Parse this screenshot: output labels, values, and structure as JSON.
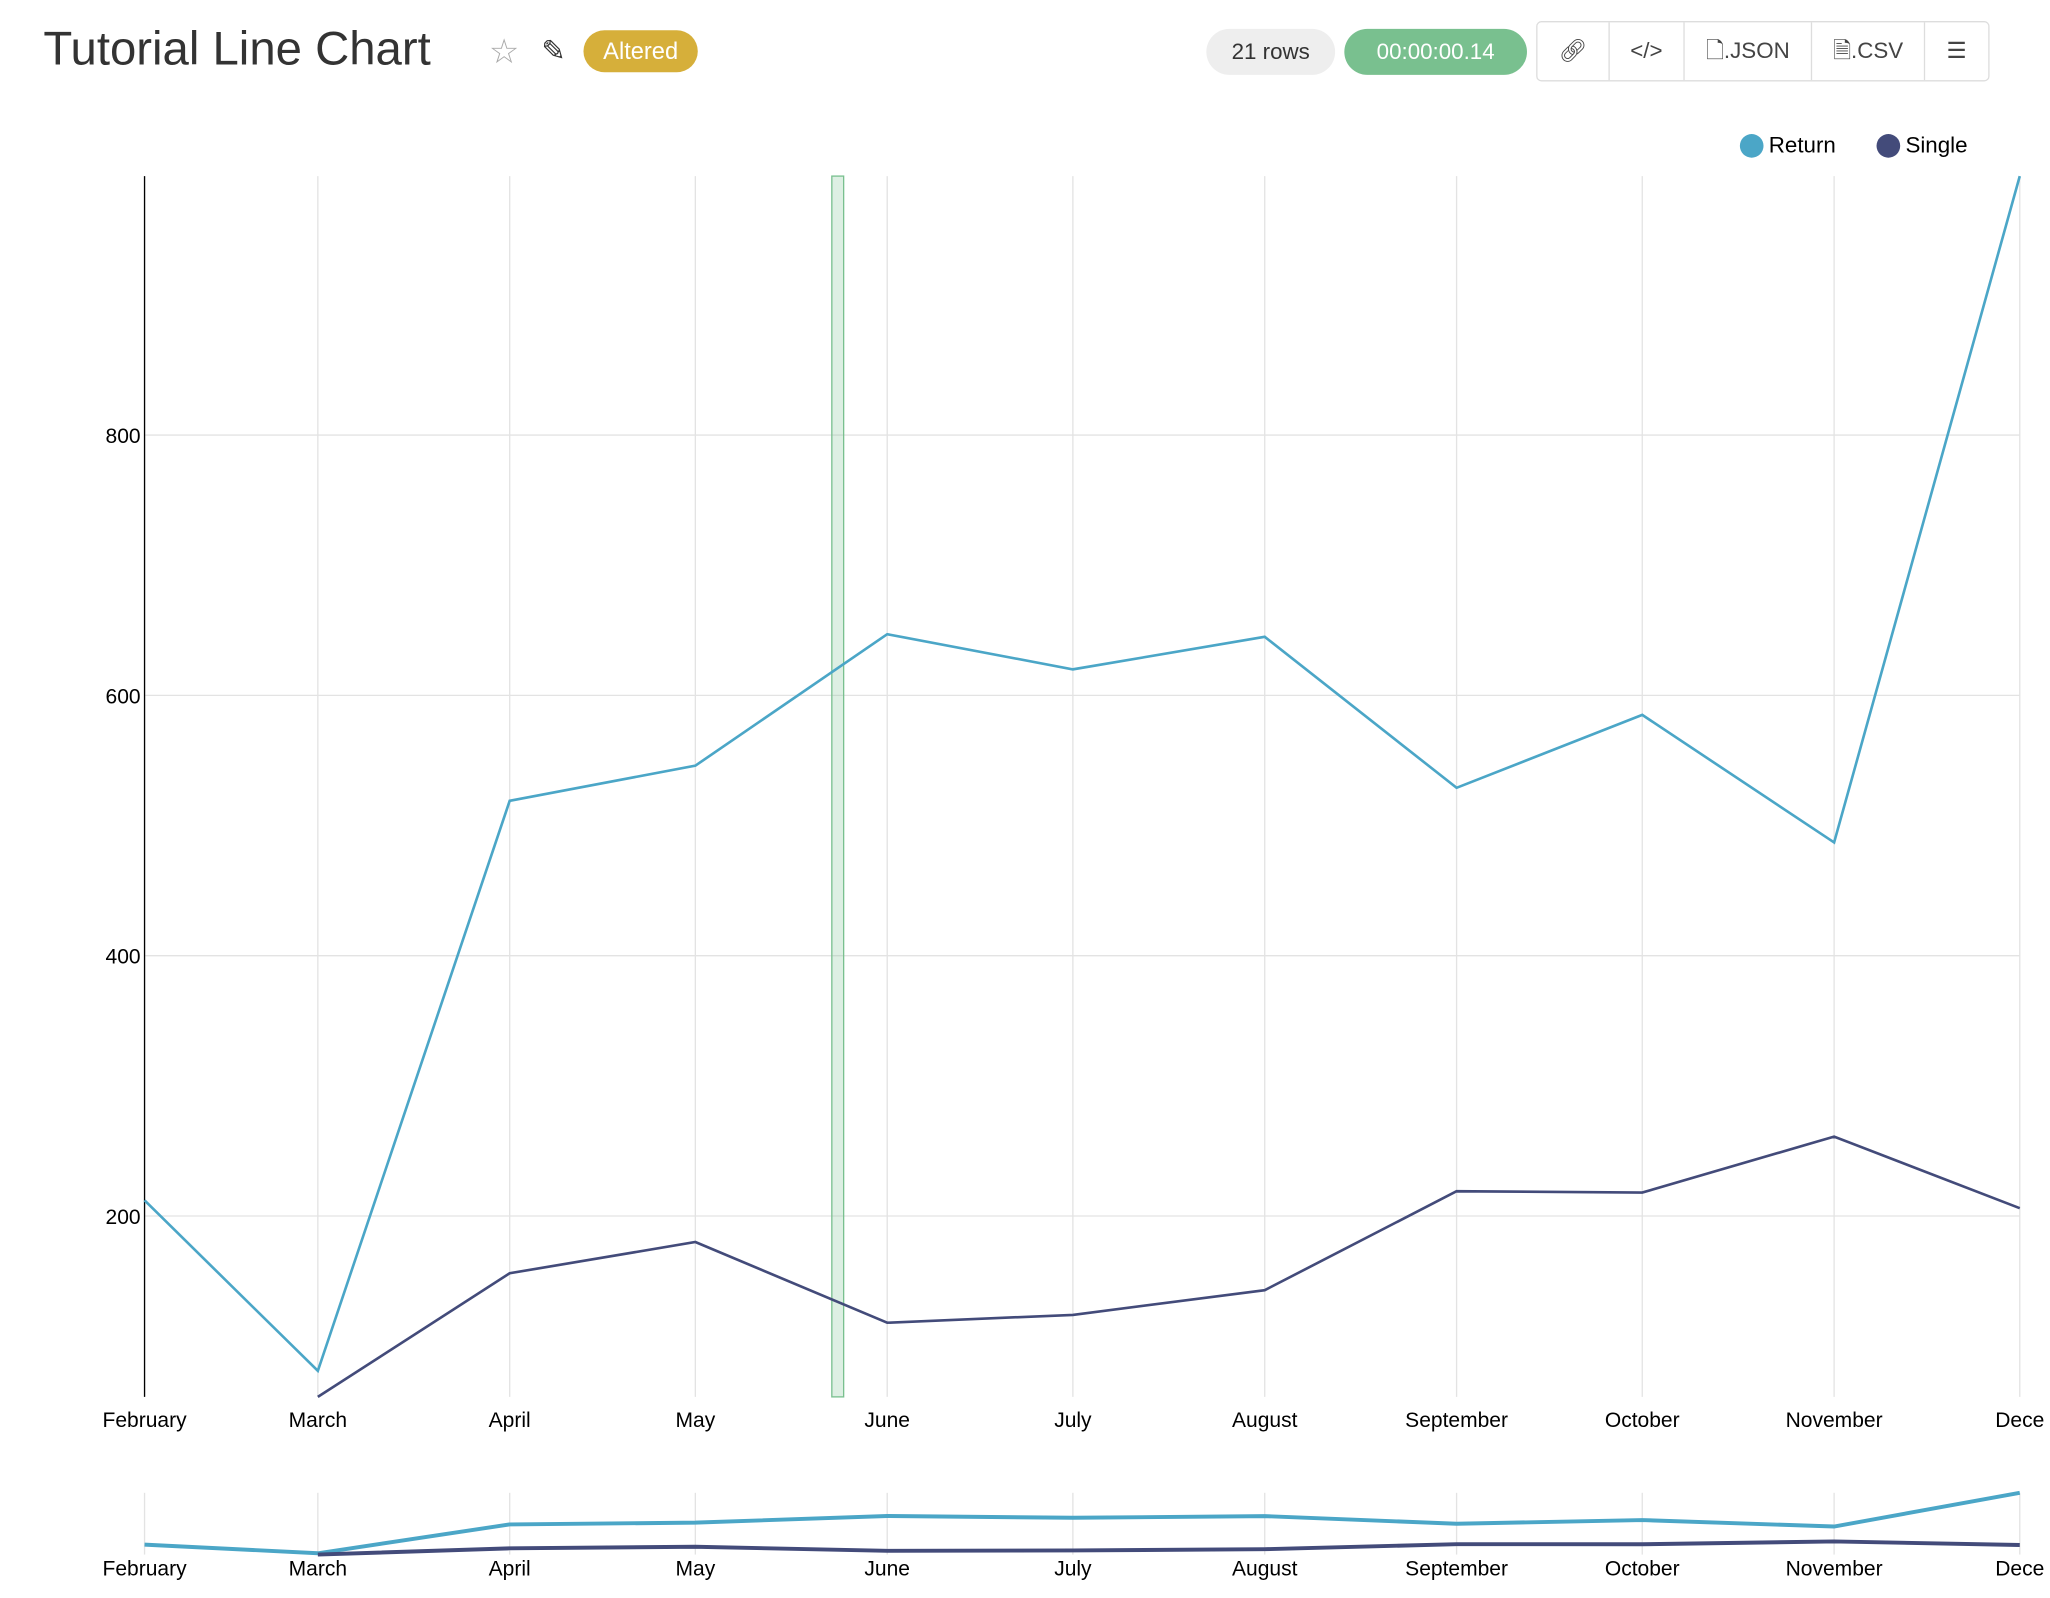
{
  "header": {
    "title": "Tutorial Line Chart",
    "badge": "Altered",
    "rows": "21 rows",
    "timer": "00:00:00.14",
    "buttons": {
      "json": ".JSON",
      "csv": ".CSV"
    },
    "icons": [
      "star-icon",
      "edit-icon",
      "link-icon",
      "code-icon",
      "json-file-icon",
      "csv-file-icon",
      "menu-icon"
    ]
  },
  "chart_data": {
    "type": "line",
    "x": [
      "February",
      "March",
      "April",
      "May",
      "June",
      "July",
      "August",
      "September",
      "October",
      "November",
      "December"
    ],
    "x_tick_labels": [
      "February",
      "March",
      "April",
      "May",
      "June",
      "July",
      "August",
      "September",
      "October",
      "November",
      "Dece"
    ],
    "y_ticks": [
      "200",
      "400",
      "600",
      "800"
    ],
    "ylim": [
      61,
      999
    ],
    "grid": true,
    "legend": "top-right",
    "series": [
      {
        "name": "Return",
        "color": "#4ba6c7",
        "values": [
          212,
          81,
          519,
          546,
          647,
          620,
          645,
          529,
          585,
          487,
          999
        ]
      },
      {
        "name": "Single",
        "color": "#434b7a",
        "values": [
          null,
          61,
          156,
          180,
          118,
          124,
          143,
          219,
          218,
          261,
          206
        ]
      }
    ],
    "brush": {
      "color": "#79c08f",
      "start": "May 22",
      "end": "May 24"
    },
    "has_overview_brush_chart": true
  }
}
